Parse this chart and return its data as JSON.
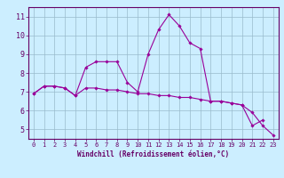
{
  "x": [
    0,
    1,
    2,
    3,
    4,
    5,
    6,
    7,
    8,
    9,
    10,
    11,
    12,
    13,
    14,
    15,
    16,
    17,
    18,
    19,
    20,
    21,
    22,
    23
  ],
  "curve1": [
    6.9,
    7.3,
    7.3,
    7.2,
    6.8,
    8.3,
    8.6,
    8.6,
    8.6,
    7.5,
    7.0,
    9.0,
    10.3,
    11.1,
    10.5,
    9.6,
    9.3,
    6.5,
    6.5,
    6.4,
    6.3,
    5.2,
    5.5,
    null
  ],
  "curve2": [
    6.9,
    7.3,
    7.3,
    7.2,
    6.8,
    7.2,
    7.2,
    7.1,
    7.1,
    7.0,
    6.9,
    6.9,
    6.8,
    6.8,
    6.7,
    6.7,
    6.6,
    6.5,
    6.5,
    6.4,
    6.3,
    5.9,
    5.2,
    4.7
  ],
  "xlim": [
    -0.5,
    23.5
  ],
  "ylim": [
    4.5,
    11.5
  ],
  "yticks": [
    5,
    6,
    7,
    8,
    9,
    10,
    11
  ],
  "xticks": [
    0,
    1,
    2,
    3,
    4,
    5,
    6,
    7,
    8,
    9,
    10,
    11,
    12,
    13,
    14,
    15,
    16,
    17,
    18,
    19,
    20,
    21,
    22,
    23
  ],
  "xlabel": "Windchill (Refroidissement éolien,°C)",
  "line_color": "#990099",
  "marker": "D",
  "marker_size": 1.8,
  "bg_color": "#cceeff",
  "grid_color": "#99bbcc",
  "axis_color": "#660066",
  "tick_color": "#660066",
  "xlabel_color": "#660066",
  "fig_bg": "#cceeff",
  "font_size_x": 5.0,
  "font_size_y": 6.0,
  "font_size_xlabel": 5.5
}
